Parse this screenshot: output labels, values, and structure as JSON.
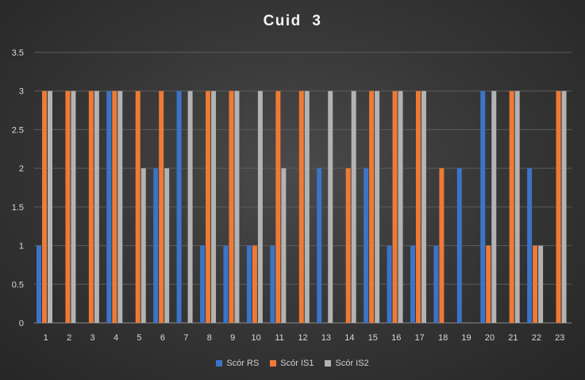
{
  "chart_data": {
    "type": "bar",
    "title": "Cuid  3",
    "xlabel": "",
    "ylabel": "",
    "ylim": [
      0,
      3.5
    ],
    "yticks": [
      "0",
      "0.5",
      "1",
      "1.5",
      "2",
      "2.5",
      "3",
      "3.5"
    ],
    "grid": true,
    "legend_position": "bottom",
    "categories": [
      "1",
      "2",
      "3",
      "4",
      "5",
      "6",
      "7",
      "8",
      "9",
      "10",
      "11",
      "12",
      "13",
      "14",
      "15",
      "16",
      "17",
      "18",
      "19",
      "20",
      "21",
      "22",
      "23"
    ],
    "series": [
      {
        "name": "Scór RS",
        "color": "#3b74c8",
        "values": [
          1,
          0,
          0,
          3,
          0,
          2,
          3,
          1,
          1,
          1,
          1,
          0,
          2,
          0,
          2,
          1,
          1,
          1,
          2,
          3,
          0,
          2,
          0
        ]
      },
      {
        "name": "Scór IS1",
        "color": "#ee7a36",
        "values": [
          3,
          3,
          3,
          3,
          3,
          3,
          0,
          3,
          3,
          1,
          3,
          3,
          0,
          2,
          3,
          3,
          3,
          2,
          0,
          1,
          3,
          1,
          3
        ]
      },
      {
        "name": "Scór IS2",
        "color": "#b3b3b3",
        "values": [
          3,
          3,
          3,
          3,
          2,
          2,
          3,
          3,
          3,
          3,
          2,
          3,
          3,
          3,
          3,
          3,
          3,
          0,
          0,
          3,
          3,
          1,
          3
        ]
      }
    ]
  }
}
